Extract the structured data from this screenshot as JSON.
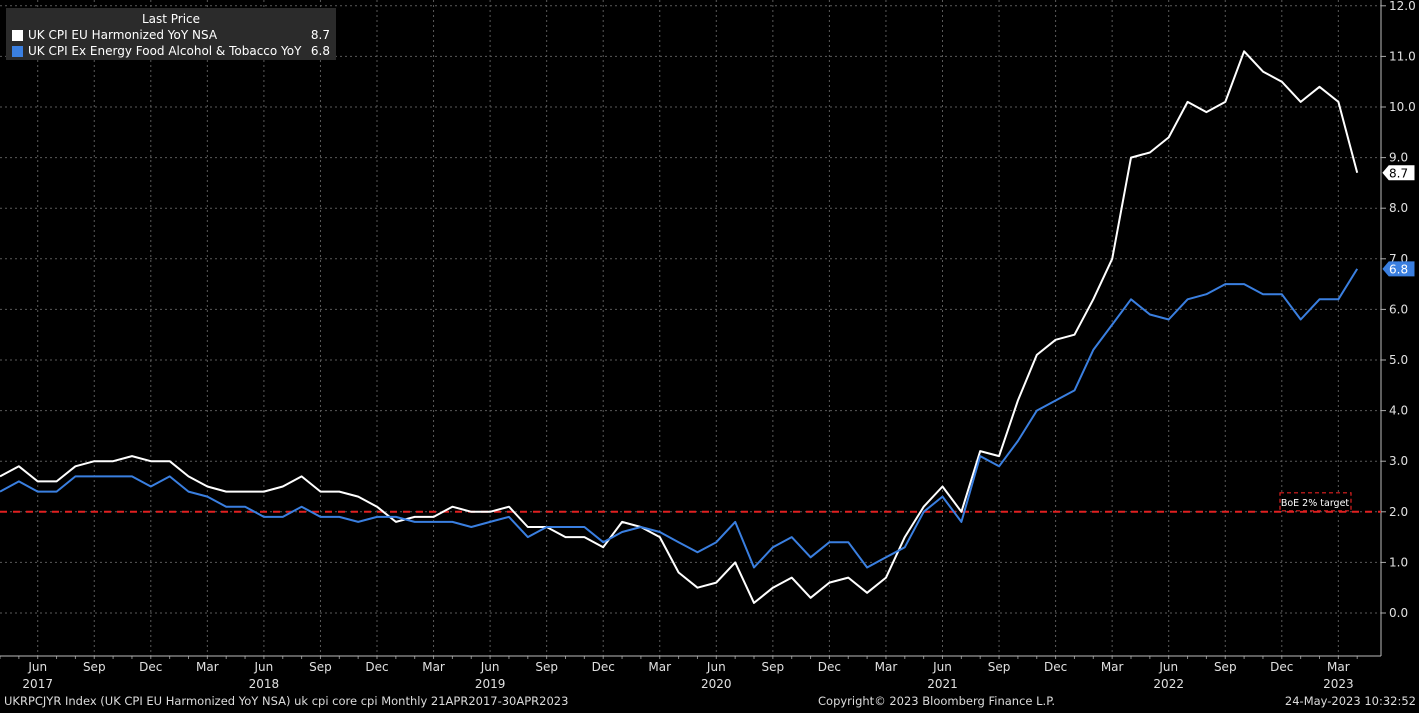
{
  "chart_data": {
    "type": "line",
    "legend": {
      "header": "Last Price",
      "placement": "top-left"
    },
    "ylim": [
      -0.8,
      12.0
    ],
    "yticks": [
      0,
      1,
      2,
      3,
      4,
      5,
      6,
      7,
      8,
      9,
      10,
      11,
      12
    ],
    "ytick_labels": [
      "0.0",
      "1.0",
      "2.0",
      "3.0",
      "4.0",
      "5.0",
      "6.0",
      "7.0",
      "8.0",
      "9.0",
      "10.0",
      "11.0",
      "12.0"
    ],
    "grid": true,
    "x": [
      "2017-04",
      "2017-05",
      "2017-06",
      "2017-07",
      "2017-08",
      "2017-09",
      "2017-10",
      "2017-11",
      "2017-12",
      "2018-01",
      "2018-02",
      "2018-03",
      "2018-04",
      "2018-05",
      "2018-06",
      "2018-07",
      "2018-08",
      "2018-09",
      "2018-10",
      "2018-11",
      "2018-12",
      "2019-01",
      "2019-02",
      "2019-03",
      "2019-04",
      "2019-05",
      "2019-06",
      "2019-07",
      "2019-08",
      "2019-09",
      "2019-10",
      "2019-11",
      "2019-12",
      "2020-01",
      "2020-02",
      "2020-03",
      "2020-04",
      "2020-05",
      "2020-06",
      "2020-07",
      "2020-08",
      "2020-09",
      "2020-10",
      "2020-11",
      "2020-12",
      "2021-01",
      "2021-02",
      "2021-03",
      "2021-04",
      "2021-05",
      "2021-06",
      "2021-07",
      "2021-08",
      "2021-09",
      "2021-10",
      "2021-11",
      "2021-12",
      "2022-01",
      "2022-02",
      "2022-03",
      "2022-04",
      "2022-05",
      "2022-06",
      "2022-07",
      "2022-08",
      "2022-09",
      "2022-10",
      "2022-11",
      "2022-12",
      "2023-01",
      "2023-02",
      "2023-03",
      "2023-04"
    ],
    "month_labels": [
      {
        "month": "2017-06",
        "label": "Jun"
      },
      {
        "month": "2017-09",
        "label": "Sep"
      },
      {
        "month": "2017-12",
        "label": "Dec"
      },
      {
        "month": "2018-03",
        "label": "Mar"
      },
      {
        "month": "2018-06",
        "label": "Jun"
      },
      {
        "month": "2018-09",
        "label": "Sep"
      },
      {
        "month": "2018-12",
        "label": "Dec"
      },
      {
        "month": "2019-03",
        "label": "Mar"
      },
      {
        "month": "2019-06",
        "label": "Jun"
      },
      {
        "month": "2019-09",
        "label": "Sep"
      },
      {
        "month": "2019-12",
        "label": "Dec"
      },
      {
        "month": "2020-03",
        "label": "Mar"
      },
      {
        "month": "2020-06",
        "label": "Jun"
      },
      {
        "month": "2020-09",
        "label": "Sep"
      },
      {
        "month": "2020-12",
        "label": "Dec"
      },
      {
        "month": "2021-03",
        "label": "Mar"
      },
      {
        "month": "2021-06",
        "label": "Jun"
      },
      {
        "month": "2021-09",
        "label": "Sep"
      },
      {
        "month": "2021-12",
        "label": "Dec"
      },
      {
        "month": "2022-03",
        "label": "Mar"
      },
      {
        "month": "2022-06",
        "label": "Jun"
      },
      {
        "month": "2022-09",
        "label": "Sep"
      },
      {
        "month": "2022-12",
        "label": "Dec"
      },
      {
        "month": "2023-03",
        "label": "Mar"
      }
    ],
    "year_labels": [
      {
        "month": "2017-06",
        "label": "2017"
      },
      {
        "month": "2018-06",
        "label": "2018"
      },
      {
        "month": "2019-06",
        "label": "2019"
      },
      {
        "month": "2020-06",
        "label": "2020"
      },
      {
        "month": "2021-06",
        "label": "2021"
      },
      {
        "month": "2022-06",
        "label": "2022"
      },
      {
        "month": "2023-03",
        "label": "2023"
      }
    ],
    "series": [
      {
        "name": "UK CPI EU Harmonized YoY NSA",
        "last_value": "8.7",
        "color": "#ffffff",
        "values": [
          2.7,
          2.9,
          2.6,
          2.6,
          2.9,
          3.0,
          3.0,
          3.1,
          3.0,
          3.0,
          2.7,
          2.5,
          2.4,
          2.4,
          2.4,
          2.5,
          2.7,
          2.4,
          2.4,
          2.3,
          2.1,
          1.8,
          1.9,
          1.9,
          2.1,
          2.0,
          2.0,
          2.1,
          1.7,
          1.7,
          1.5,
          1.5,
          1.3,
          1.8,
          1.7,
          1.5,
          0.8,
          0.5,
          0.6,
          1.0,
          0.2,
          0.5,
          0.7,
          0.3,
          0.6,
          0.7,
          0.4,
          0.7,
          1.5,
          2.1,
          2.5,
          2.0,
          3.2,
          3.1,
          4.2,
          5.1,
          5.4,
          5.5,
          6.2,
          7.0,
          9.0,
          9.1,
          9.4,
          10.1,
          9.9,
          10.1,
          11.1,
          10.7,
          10.5,
          10.1,
          10.4,
          10.1,
          8.7
        ]
      },
      {
        "name": "UK CPI Ex Energy Food Alcohol & Tobacco YoY",
        "last_value": "6.8",
        "color": "#3a7fe0",
        "values": [
          2.4,
          2.6,
          2.4,
          2.4,
          2.7,
          2.7,
          2.7,
          2.7,
          2.5,
          2.7,
          2.4,
          2.3,
          2.1,
          2.1,
          1.9,
          1.9,
          2.1,
          1.9,
          1.9,
          1.8,
          1.9,
          1.9,
          1.8,
          1.8,
          1.8,
          1.7,
          1.8,
          1.9,
          1.5,
          1.7,
          1.7,
          1.7,
          1.4,
          1.6,
          1.7,
          1.6,
          1.4,
          1.2,
          1.4,
          1.8,
          0.9,
          1.3,
          1.5,
          1.1,
          1.4,
          1.4,
          0.9,
          1.1,
          1.3,
          2.0,
          2.3,
          1.8,
          3.1,
          2.9,
          3.4,
          4.0,
          4.2,
          4.4,
          5.2,
          5.7,
          6.2,
          5.9,
          5.8,
          6.2,
          6.3,
          6.5,
          6.5,
          6.3,
          6.3,
          5.8,
          6.2,
          6.2,
          6.8
        ]
      }
    ],
    "reference_line": {
      "y": 2.0,
      "label": "BoE 2% target",
      "color": "#e02020"
    }
  },
  "footer": {
    "left": "UKRPCJYR Index (UK CPI EU Harmonized YoY NSA) uk cpi core cpi  Monthly 21APR2017-30APR2023",
    "center": "Copyright© 2023 Bloomberg Finance L.P.",
    "right": "24-May-2023 10:32:52"
  }
}
